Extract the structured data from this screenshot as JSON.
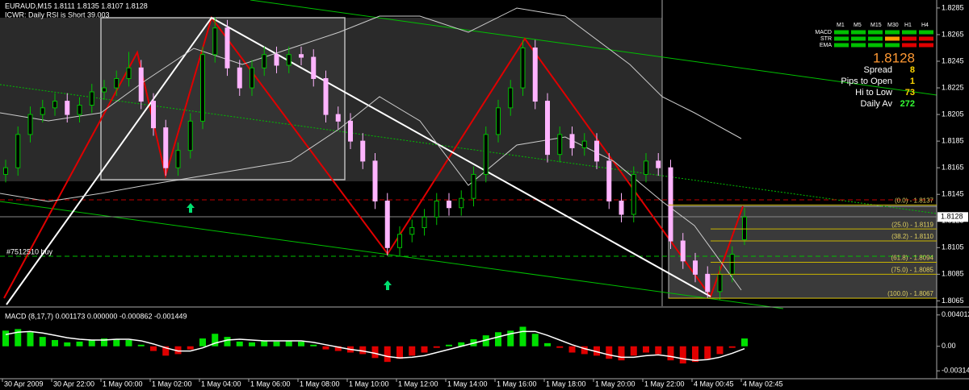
{
  "chart_data": {
    "type": "candlestick",
    "title": "EURAUD,M15  1.8111 1.8135 1.8107 1.8128",
    "subtitle": "ICWR: Daily RSI is Short 39.003",
    "order_label": "#7512510 buy",
    "up_color": "#00c000",
    "down_color": "#ffb4ff",
    "categories": [
      "30 Apr 2009",
      "30 Apr 22:00",
      "1 May 00:00",
      "1 May 02:00",
      "1 May 04:00",
      "1 May 06:00",
      "1 May 08:00",
      "1 May 10:00",
      "1 May 12:00",
      "1 May 14:00",
      "1 May 16:00",
      "1 May 18:00",
      "1 May 20:00",
      "1 May 22:00",
      "4 May 00:45",
      "4 May 02:45"
    ],
    "ylim": [
      1.8061,
      1.8291
    ],
    "yticks": [
      1.8285,
      1.8265,
      1.8245,
      1.8225,
      1.8205,
      1.8185,
      1.8165,
      1.8145,
      1.8125,
      1.8105,
      1.8085,
      1.8065
    ],
    "current_price": 1.8128,
    "candles": [
      [
        1.816,
        1.8171,
        1.8154,
        1.8165
      ],
      [
        1.8165,
        1.8196,
        1.8159,
        1.819
      ],
      [
        1.819,
        1.8211,
        1.8184,
        1.8205
      ],
      [
        1.8205,
        1.8216,
        1.8199,
        1.821
      ],
      [
        1.821,
        1.8221,
        1.8204,
        1.8215
      ],
      [
        1.8215,
        1.8221,
        1.8199,
        1.8205
      ],
      [
        1.8205,
        1.8218,
        1.8199,
        1.8212
      ],
      [
        1.8212,
        1.8228,
        1.8206,
        1.8222
      ],
      [
        1.8222,
        1.8231,
        1.8216,
        1.8225
      ],
      [
        1.8225,
        1.8238,
        1.8219,
        1.8232
      ],
      [
        1.8232,
        1.8252,
        1.8226,
        1.824
      ],
      [
        1.824,
        1.8246,
        1.8209,
        1.8215
      ],
      [
        1.8215,
        1.8221,
        1.8189,
        1.8195
      ],
      [
        1.8195,
        1.8201,
        1.8159,
        1.8165
      ],
      [
        1.8165,
        1.8184,
        1.8159,
        1.8178
      ],
      [
        1.8178,
        1.8206,
        1.8172,
        1.82
      ],
      [
        1.82,
        1.8256,
        1.8194,
        1.825
      ],
      [
        1.825,
        1.8278,
        1.8244,
        1.827
      ],
      [
        1.827,
        1.8276,
        1.8234,
        1.824
      ],
      [
        1.824,
        1.8246,
        1.8219,
        1.8225
      ],
      [
        1.8225,
        1.8246,
        1.8219,
        1.824
      ],
      [
        1.824,
        1.8256,
        1.8234,
        1.825
      ],
      [
        1.825,
        1.8256,
        1.8236,
        1.8242
      ],
      [
        1.8242,
        1.8256,
        1.8236,
        1.825
      ],
      [
        1.825,
        1.8256,
        1.8242,
        1.8248
      ],
      [
        1.8248,
        1.8254,
        1.8226,
        1.8232
      ],
      [
        1.8232,
        1.8238,
        1.8199,
        1.8205
      ],
      [
        1.8205,
        1.8211,
        1.8194,
        1.82
      ],
      [
        1.82,
        1.8206,
        1.8179,
        1.8185
      ],
      [
        1.8185,
        1.8191,
        1.8164,
        1.817
      ],
      [
        1.817,
        1.8176,
        1.8134,
        1.814
      ],
      [
        1.814,
        1.8146,
        1.8099,
        1.8105
      ],
      [
        1.8105,
        1.8121,
        1.8099,
        1.8115
      ],
      [
        1.8115,
        1.8126,
        1.8109,
        1.812
      ],
      [
        1.812,
        1.8134,
        1.8114,
        1.8128
      ],
      [
        1.8128,
        1.8146,
        1.8122,
        1.814
      ],
      [
        1.814,
        1.8146,
        1.8129,
        1.8135
      ],
      [
        1.8135,
        1.8148,
        1.8129,
        1.8142
      ],
      [
        1.8142,
        1.8166,
        1.8136,
        1.816
      ],
      [
        1.816,
        1.8196,
        1.8154,
        1.819
      ],
      [
        1.819,
        1.8216,
        1.8184,
        1.821
      ],
      [
        1.821,
        1.8231,
        1.8204,
        1.8225
      ],
      [
        1.8225,
        1.8261,
        1.8219,
        1.8255
      ],
      [
        1.8255,
        1.8261,
        1.8209,
        1.8215
      ],
      [
        1.8215,
        1.8221,
        1.8169,
        1.8175
      ],
      [
        1.8175,
        1.8196,
        1.8169,
        1.819
      ],
      [
        1.819,
        1.8196,
        1.8174,
        1.818
      ],
      [
        1.818,
        1.8191,
        1.8174,
        1.8185
      ],
      [
        1.8185,
        1.8191,
        1.8164,
        1.817
      ],
      [
        1.817,
        1.8176,
        1.8134,
        1.814
      ],
      [
        1.814,
        1.8146,
        1.8124,
        1.813
      ],
      [
        1.813,
        1.8166,
        1.8124,
        1.816
      ],
      [
        1.816,
        1.8176,
        1.8154,
        1.817
      ],
      [
        1.817,
        1.8176,
        1.8159,
        1.8165
      ],
      [
        1.8165,
        1.8171,
        1.8104,
        1.811
      ],
      [
        1.811,
        1.8116,
        1.8089,
        1.8095
      ],
      [
        1.8095,
        1.8101,
        1.8079,
        1.8085
      ],
      [
        1.8085,
        1.8091,
        1.8067,
        1.8072
      ],
      [
        1.8072,
        1.8091,
        1.8066,
        1.8085
      ],
      [
        1.8085,
        1.8106,
        1.8079,
        1.81
      ],
      [
        1.8111,
        1.8135,
        1.8107,
        1.8128
      ]
    ],
    "fibonacci": [
      {
        "label": "(0.0) - 1.8137",
        "price": 1.8137
      },
      {
        "label": "(25.0) - 1.8119",
        "price": 1.8119
      },
      {
        "label": "(38.2) - 1.8110",
        "price": 1.811
      },
      {
        "label": "(61.8) - 1.8094",
        "price": 1.8094
      },
      {
        "label": "(75.0) - 1.8085",
        "price": 1.8085
      },
      {
        "label": "(100.0) - 1.8067",
        "price": 1.8067
      }
    ],
    "macd": {
      "title": "MACD (8,17,7) 0.001173 0.000000 -0.000862 -0.001449",
      "ylim": [
        -0.00415,
        0.00482
      ],
      "yticks": [
        0.004012,
        {
          "value": 0,
          "label": "0.00"
        },
        -0.003144
      ],
      "positive_color": "#00e000",
      "negative_color": "#e00000",
      "histogram": [
        0.002,
        0.0022,
        0.0018,
        0.0012,
        0.0008,
        0.0005,
        0.0006,
        0.0008,
        0.001,
        0.0009,
        0.0008,
        0.0002,
        -0.0006,
        -0.0012,
        -0.001,
        -0.0004,
        0.001,
        0.0016,
        0.0012,
        0.0006,
        0.0005,
        0.0007,
        0.0006,
        0.0007,
        0.0006,
        0.0002,
        -0.0004,
        -0.0006,
        -0.0008,
        -0.001,
        -0.0015,
        -0.002,
        -0.0016,
        -0.0012,
        -0.0008,
        -0.0002,
        0.0002,
        0.0005,
        0.0009,
        0.0014,
        0.0018,
        0.002,
        0.0025,
        0.0016,
        0.0004,
        -0.0002,
        -0.0008,
        -0.001,
        -0.0012,
        -0.0016,
        -0.0018,
        -0.0012,
        -0.0008,
        -0.001,
        -0.0018,
        -0.0022,
        -0.002,
        -0.0016,
        -0.001,
        -0.0002,
        0.001
      ],
      "signal": [
        0.0015,
        0.0018,
        0.0019,
        0.0017,
        0.0014,
        0.0011,
        0.0009,
        0.0008,
        0.0008,
        0.0009,
        0.0009,
        0.0007,
        0.0003,
        -0.0002,
        -0.0006,
        -0.0006,
        -0.0002,
        0.0004,
        0.0008,
        0.0009,
        0.0008,
        0.0007,
        0.0007,
        0.0007,
        0.0007,
        0.0005,
        0.0002,
        -0.0001,
        -0.0004,
        -0.0006,
        -0.0009,
        -0.0013,
        -0.0015,
        -0.0014,
        -0.0012,
        -0.0008,
        -0.0004,
        0.0,
        0.0004,
        0.0008,
        0.0012,
        0.0016,
        0.0019,
        0.0019,
        0.0014,
        0.0008,
        0.0002,
        -0.0003,
        -0.0007,
        -0.0011,
        -0.0014,
        -0.0014,
        -0.0012,
        -0.0011,
        -0.0013,
        -0.0016,
        -0.0018,
        -0.0017,
        -0.0014,
        -0.0009,
        -0.0003
      ],
      "signal_color": "#ffffff"
    },
    "panel": {
      "timeframes": [
        "M1",
        "M5",
        "M15",
        "M30",
        "H1",
        "H4"
      ],
      "rows": [
        {
          "name": "MACD",
          "colors": [
            "#00c000",
            "#00c000",
            "#00c000",
            "#00c000",
            "#00c000",
            "#00c000"
          ]
        },
        {
          "name": "STR",
          "colors": [
            "#00c000",
            "#00c000",
            "#00c000",
            "#ff9900",
            "#e00000",
            "#e00000"
          ]
        },
        {
          "name": "EMA",
          "colors": [
            "#00c000",
            "#00c000",
            "#00c000",
            "#00c000",
            "#e00000",
            "#e00000"
          ]
        }
      ],
      "price": "1.8128",
      "stats": [
        {
          "label": "Spread",
          "value": "8"
        },
        {
          "label": "Pips to Open",
          "value": "1"
        },
        {
          "label": "Hi to Low",
          "value": "73"
        },
        {
          "label": "Daily Av",
          "value": "272"
        }
      ]
    }
  }
}
